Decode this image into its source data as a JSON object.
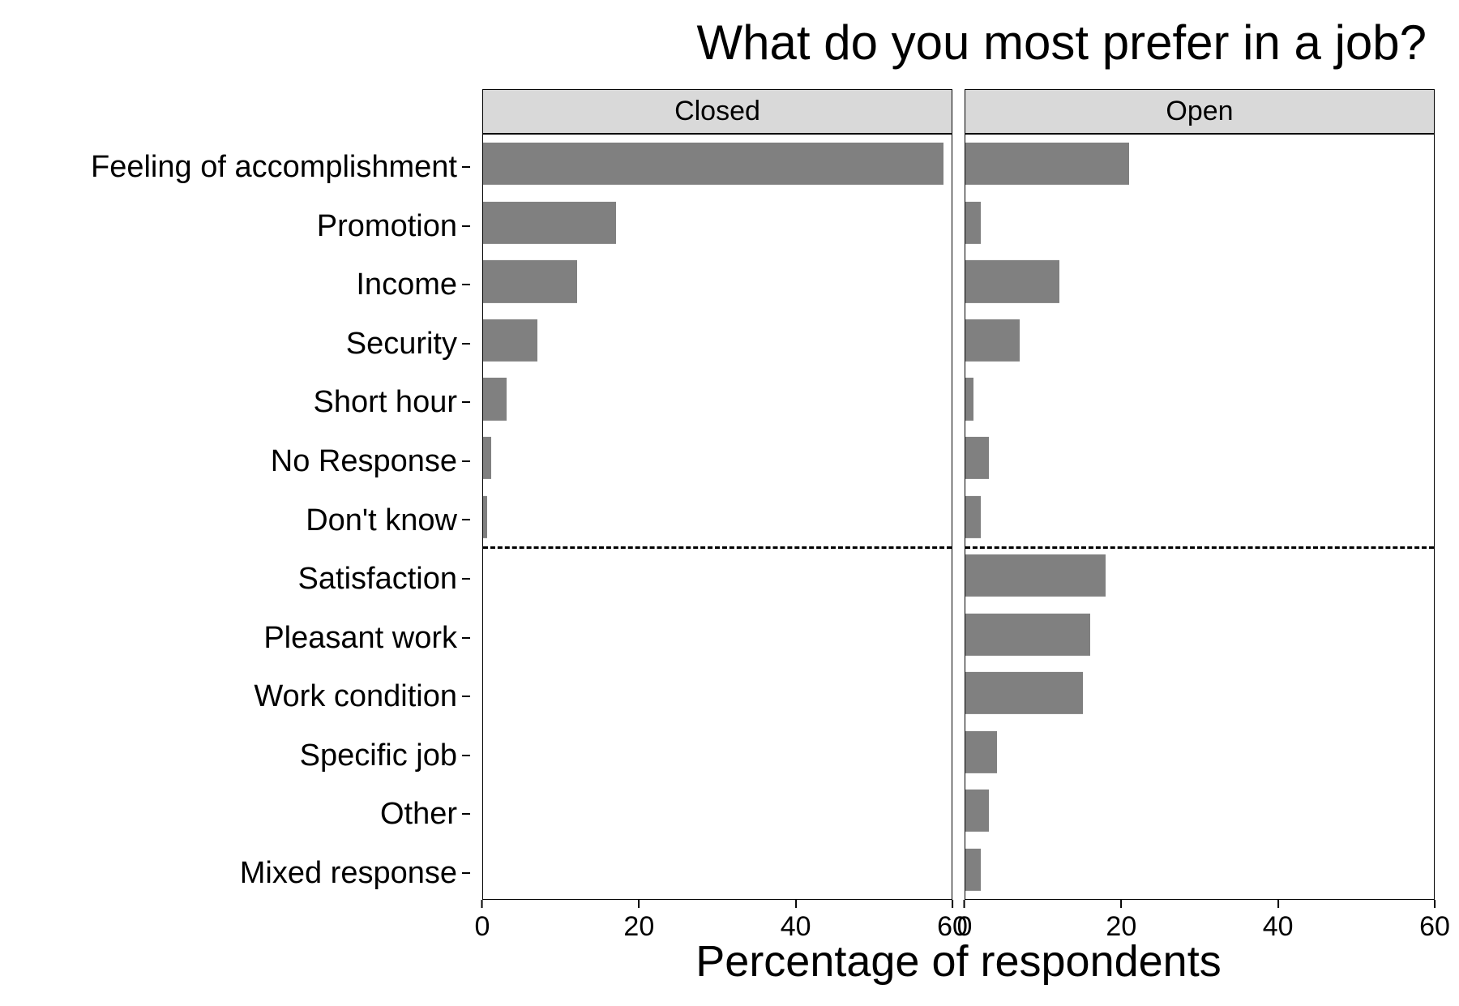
{
  "chart": {
    "type": "bar",
    "title": "What do you most prefer in a job?",
    "title_fontsize": 60,
    "xlabel": "Percentage of respondents",
    "xlabel_fontsize": 54,
    "background_color": "#ffffff",
    "panel_border_color": "#000000",
    "strip_bg_color": "#d9d9d9",
    "strip_text_color": "#000000",
    "strip_fontsize": 34,
    "bar_color": "#808080",
    "axis_text_color": "#000000",
    "axis_text_fontsize": 38,
    "xtick_fontsize": 34,
    "hline_color": "#000000",
    "hline_dash": "dashed",
    "xlim": [
      0,
      60
    ],
    "xticks": [
      0,
      20,
      40,
      60
    ],
    "bar_rel_height": 0.72,
    "divider_after_index": 6,
    "categories": [
      "Feeling of accomplishment",
      "Promotion",
      "Income",
      "Security",
      "Short hour",
      "No Response",
      "Don't know",
      "Satisfaction",
      "Pleasant work",
      "Work condition",
      "Specific job",
      "Other",
      "Mixed response"
    ],
    "facets": [
      {
        "label": "Closed",
        "values": [
          59,
          17,
          12,
          7,
          3,
          1,
          0.5,
          0,
          0,
          0,
          0,
          0,
          0
        ]
      },
      {
        "label": "Open",
        "values": [
          21,
          2,
          12,
          7,
          1,
          3,
          2,
          18,
          16,
          15,
          4,
          3,
          2
        ]
      }
    ]
  }
}
